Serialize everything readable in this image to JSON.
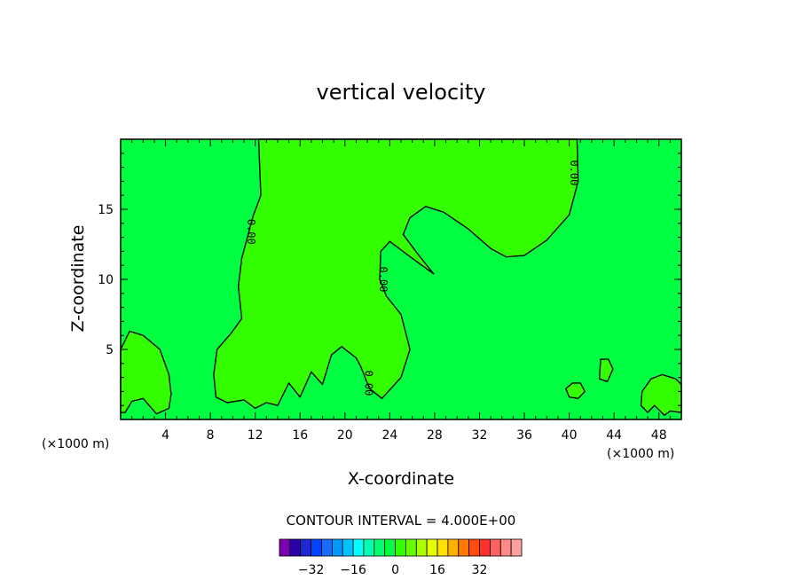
{
  "chart_data": {
    "type": "heatmap",
    "title": "vertical velocity",
    "xlabel": "X-coordinate",
    "ylabel": "Z-coordinate",
    "x_unit": "(×1000 m)",
    "y_unit": "(×1000 m)",
    "xlim": [
      0,
      50
    ],
    "ylim": [
      0,
      20
    ],
    "x_ticks": [
      4,
      8,
      12,
      16,
      20,
      24,
      28,
      32,
      36,
      40,
      44,
      48
    ],
    "y_ticks": [
      5,
      10,
      15
    ],
    "background_value": 0,
    "background_color": "#00ff40",
    "contour_interval_text": "CONTOUR INTERVAL = 4.000E+00",
    "contour_interval": 4,
    "contour_labels": [
      {
        "text": "0.00",
        "x": 11.3,
        "y": 13.4
      },
      {
        "text": "0.00",
        "x": 23.1,
        "y": 10.0
      },
      {
        "text": "0.00",
        "x": 40.1,
        "y": 17.6
      },
      {
        "text": "0.00",
        "x": 21.8,
        "y": 2.6
      }
    ],
    "positive_regions": [
      {
        "name": "central-updraft",
        "value_min": 0,
        "value_max": 4,
        "color": "#33ff00",
        "outline": [
          [
            12.3,
            20
          ],
          [
            12.5,
            16
          ],
          [
            11.8,
            14.5
          ],
          [
            10.8,
            11.5
          ],
          [
            10.5,
            9.5
          ],
          [
            10.8,
            7.2
          ],
          [
            9.8,
            6.1
          ],
          [
            8.6,
            5
          ],
          [
            8.3,
            3.2
          ],
          [
            8.5,
            1.6
          ],
          [
            9.5,
            1.2
          ],
          [
            11,
            1.4
          ],
          [
            12,
            0.8
          ],
          [
            13,
            1.2
          ],
          [
            14,
            1
          ],
          [
            15,
            2.6
          ],
          [
            16,
            1.6
          ],
          [
            17,
            3.4
          ],
          [
            18,
            2.5
          ],
          [
            18.8,
            4.6
          ],
          [
            19.7,
            5.2
          ],
          [
            21,
            4.4
          ],
          [
            21.4,
            3.8
          ],
          [
            22.2,
            2.2
          ],
          [
            23.3,
            1.5
          ],
          [
            25,
            3
          ],
          [
            25.8,
            5
          ],
          [
            25,
            7.5
          ],
          [
            23.7,
            8.8
          ],
          [
            23.1,
            10
          ],
          [
            23.2,
            12
          ],
          [
            24,
            12.7
          ],
          [
            25.5,
            11.8
          ],
          [
            27.9,
            10.4
          ],
          [
            26.5,
            11.8
          ],
          [
            25.2,
            13.2
          ],
          [
            25.8,
            14.4
          ],
          [
            27.2,
            15.2
          ],
          [
            28.8,
            14.8
          ],
          [
            31,
            13.6
          ],
          [
            33,
            12.2
          ],
          [
            34.4,
            11.6
          ],
          [
            36,
            11.7
          ],
          [
            38,
            12.8
          ],
          [
            40,
            14.6
          ],
          [
            40.8,
            17
          ],
          [
            40.7,
            20
          ]
        ]
      },
      {
        "name": "left-low-cell",
        "value_min": 0,
        "value_max": 4,
        "color": "#33ff00",
        "outline": [
          [
            0,
            5
          ],
          [
            0.8,
            6.3
          ],
          [
            2,
            6
          ],
          [
            3.5,
            5
          ],
          [
            4.3,
            3.2
          ],
          [
            4.5,
            1.8
          ],
          [
            4.3,
            0.8
          ],
          [
            3.2,
            0.4
          ],
          [
            2,
            1.5
          ],
          [
            1,
            1.3
          ],
          [
            0.4,
            0.5
          ],
          [
            0,
            0.5
          ]
        ]
      },
      {
        "name": "right-low-cell-1",
        "value_min": 0,
        "value_max": 4,
        "color": "#33ff00",
        "outline": [
          [
            42.8,
            4.3
          ],
          [
            43.5,
            4.3
          ],
          [
            43.9,
            3.6
          ],
          [
            43.4,
            2.7
          ],
          [
            42.7,
            2.9
          ]
        ]
      },
      {
        "name": "right-low-cell-2",
        "value_min": 0,
        "value_max": 4,
        "color": "#33ff00",
        "outline": [
          [
            39.7,
            2.2
          ],
          [
            40.3,
            2.6
          ],
          [
            41,
            2.6
          ],
          [
            41.4,
            2
          ],
          [
            40.8,
            1.5
          ],
          [
            40,
            1.6
          ]
        ]
      },
      {
        "name": "right-low-cell-3",
        "value_min": 0,
        "value_max": 4,
        "color": "#33ff00",
        "outline": [
          [
            46.5,
            2
          ],
          [
            47.3,
            2.9
          ],
          [
            48.3,
            3.2
          ],
          [
            49.5,
            2.9
          ],
          [
            50,
            2.5
          ],
          [
            50,
            0.5
          ],
          [
            49,
            0.6
          ],
          [
            48.5,
            0.3
          ],
          [
            47.6,
            1
          ],
          [
            47,
            0.5
          ],
          [
            46.4,
            1
          ]
        ]
      }
    ],
    "colorbar": {
      "tick_labels": [
        "−32",
        "−16",
        "0",
        "16",
        "32"
      ],
      "tick_values": [
        -32,
        -16,
        0,
        16,
        32
      ],
      "colors": [
        "#7a00b0",
        "#2a00a8",
        "#1e2ad0",
        "#0044ff",
        "#1a6cff",
        "#0098ff",
        "#00c4ff",
        "#00ffff",
        "#00ffb0",
        "#00ff70",
        "#00ff40",
        "#33ff00",
        "#66ff00",
        "#aaff00",
        "#e6ff00",
        "#ffe000",
        "#ffb000",
        "#ff7a00",
        "#ff4a10",
        "#ff3030",
        "#ff6060",
        "#ff8888",
        "#ffa0a0"
      ]
    }
  }
}
